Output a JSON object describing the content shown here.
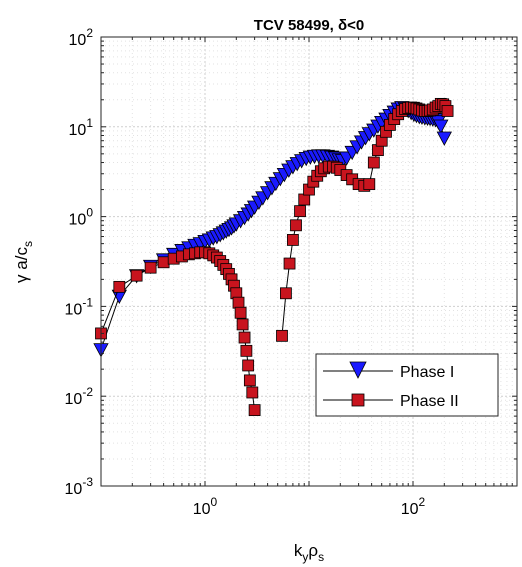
{
  "chart_data": {
    "type": "scatter",
    "title": "TCV 58499, δ<0",
    "xlabel": "k_y ρ_s",
    "ylabel": "γ a/c_s",
    "x_scale": "log",
    "y_scale": "log",
    "xlim": [
      0.1,
      1000
    ],
    "ylim": [
      0.001,
      100
    ],
    "x_ticks": [
      {
        "value": 1,
        "base": "10",
        "exp": "0"
      },
      {
        "value": 100,
        "base": "10",
        "exp": "2"
      }
    ],
    "y_ticks": [
      {
        "value": 0.001,
        "base": "10",
        "exp": "-3"
      },
      {
        "value": 0.01,
        "base": "10",
        "exp": "-2"
      },
      {
        "value": 0.1,
        "base": "10",
        "exp": "-1"
      },
      {
        "value": 1,
        "base": "10",
        "exp": "0"
      },
      {
        "value": 10,
        "base": "10",
        "exp": "1"
      },
      {
        "value": 100,
        "base": "10",
        "exp": "2"
      }
    ],
    "grid": true,
    "legend_position": "lower-right",
    "series": [
      {
        "name": "Phase I",
        "marker": "triangle-down",
        "color": "#1a1aff",
        "points": [
          [
            0.1,
            0.033
          ],
          [
            0.15,
            0.13
          ],
          [
            0.22,
            0.22
          ],
          [
            0.3,
            0.28
          ],
          [
            0.4,
            0.33
          ],
          [
            0.5,
            0.38
          ],
          [
            0.6,
            0.42
          ],
          [
            0.7,
            0.45
          ],
          [
            0.8,
            0.48
          ],
          [
            0.9,
            0.5
          ],
          [
            1.0,
            0.53
          ],
          [
            1.1,
            0.55
          ],
          [
            1.2,
            0.58
          ],
          [
            1.3,
            0.6
          ],
          [
            1.4,
            0.63
          ],
          [
            1.5,
            0.66
          ],
          [
            1.6,
            0.69
          ],
          [
            1.7,
            0.72
          ],
          [
            1.8,
            0.75
          ],
          [
            1.9,
            0.79
          ],
          [
            2.0,
            0.83
          ],
          [
            2.2,
            0.9
          ],
          [
            2.4,
            0.98
          ],
          [
            2.6,
            1.07
          ],
          [
            2.8,
            1.17
          ],
          [
            3.0,
            1.28
          ],
          [
            3.3,
            1.45
          ],
          [
            3.6,
            1.62
          ],
          [
            4.0,
            1.85
          ],
          [
            4.4,
            2.1
          ],
          [
            4.8,
            2.35
          ],
          [
            5.3,
            2.65
          ],
          [
            5.8,
            2.95
          ],
          [
            6.4,
            3.3
          ],
          [
            7.0,
            3.6
          ],
          [
            7.7,
            3.9
          ],
          [
            8.5,
            4.2
          ],
          [
            9.4,
            4.45
          ],
          [
            10.3,
            4.6
          ],
          [
            11.3,
            4.7
          ],
          [
            12.4,
            4.75
          ],
          [
            13.6,
            4.75
          ],
          [
            15.0,
            4.7
          ],
          [
            16.5,
            4.6
          ],
          [
            18.0,
            4.5
          ],
          [
            19.5,
            4.3
          ],
          [
            21.0,
            4.2
          ],
          [
            23.0,
            4.5
          ],
          [
            26.0,
            5.2
          ],
          [
            29.0,
            6.0
          ],
          [
            32.0,
            6.8
          ],
          [
            35.0,
            7.6
          ],
          [
            38.0,
            8.4
          ],
          [
            42.0,
            9.2
          ],
          [
            46.0,
            10.2
          ],
          [
            50.0,
            11.2
          ],
          [
            55.0,
            12.2
          ],
          [
            60.0,
            13.4
          ],
          [
            66.0,
            14.6
          ],
          [
            72.0,
            15.8
          ],
          [
            78.0,
            16.4
          ],
          [
            84.0,
            16.0
          ],
          [
            90.0,
            15.2
          ],
          [
            96.0,
            14.4
          ],
          [
            102.0,
            13.8
          ],
          [
            108.0,
            13.4
          ],
          [
            115.0,
            13.0
          ],
          [
            122.0,
            12.8
          ],
          [
            130.0,
            12.6
          ],
          [
            138.0,
            12.5
          ],
          [
            146.0,
            12.4
          ],
          [
            155.0,
            12.2
          ],
          [
            165.0,
            12.0
          ],
          [
            175.0,
            11.4
          ],
          [
            185.0,
            10.2
          ],
          [
            200.0,
            7.5
          ]
        ]
      },
      {
        "name": "Phase II",
        "marker": "square",
        "color": "#c8141e",
        "points": [
          [
            0.1,
            0.05
          ],
          [
            0.15,
            0.165
          ],
          [
            0.22,
            0.22
          ],
          [
            0.3,
            0.27
          ],
          [
            0.4,
            0.31
          ],
          [
            0.5,
            0.34
          ],
          [
            0.6,
            0.36
          ],
          [
            0.7,
            0.38
          ],
          [
            0.8,
            0.39
          ],
          [
            0.9,
            0.4
          ],
          [
            1.0,
            0.4
          ],
          [
            1.1,
            0.39
          ],
          [
            1.2,
            0.37
          ],
          [
            1.3,
            0.35
          ],
          [
            1.4,
            0.32
          ],
          [
            1.5,
            0.29
          ],
          [
            1.6,
            0.26
          ],
          [
            1.7,
            0.23
          ],
          [
            1.8,
            0.2
          ],
          [
            1.9,
            0.17
          ],
          [
            2.0,
            0.14
          ],
          [
            2.1,
            0.11
          ],
          [
            2.2,
            0.085
          ],
          [
            2.3,
            0.063
          ],
          [
            2.4,
            0.045
          ],
          [
            2.5,
            0.032
          ],
          [
            2.6,
            0.022
          ],
          [
            2.7,
            0.015
          ],
          [
            2.85,
            0.011
          ],
          [
            3.0,
            0.007
          ],
          [
            5.5,
            0.047
          ],
          [
            6.0,
            0.14
          ],
          [
            6.5,
            0.3
          ],
          [
            7.0,
            0.55
          ],
          [
            7.5,
            0.8
          ],
          [
            8.2,
            1.15
          ],
          [
            9.0,
            1.55
          ],
          [
            10.0,
            2.0
          ],
          [
            11.0,
            2.45
          ],
          [
            12.0,
            2.85
          ],
          [
            13.0,
            3.2
          ],
          [
            14.0,
            3.45
          ],
          [
            15.5,
            3.6
          ],
          [
            17.0,
            3.6
          ],
          [
            18.5,
            3.5
          ],
          [
            20.0,
            3.3
          ],
          [
            23.0,
            2.9
          ],
          [
            26.0,
            2.6
          ],
          [
            30.0,
            2.3
          ],
          [
            34.0,
            2.2
          ],
          [
            38.0,
            2.3
          ],
          [
            42.0,
            4.0
          ],
          [
            46.0,
            5.5
          ],
          [
            50.0,
            7.0
          ],
          [
            55.0,
            8.8
          ],
          [
            60.0,
            10.5
          ],
          [
            66.0,
            12.2
          ],
          [
            72.0,
            13.8
          ],
          [
            78.0,
            15.0
          ],
          [
            84.0,
            15.8
          ],
          [
            90.0,
            16.2
          ],
          [
            96.0,
            16.4
          ],
          [
            102.0,
            16.3
          ],
          [
            108.0,
            16.0
          ],
          [
            115.0,
            15.6
          ],
          [
            122.0,
            15.2
          ],
          [
            130.0,
            15.0
          ],
          [
            138.0,
            15.0
          ],
          [
            146.0,
            15.2
          ],
          [
            155.0,
            15.6
          ],
          [
            165.0,
            16.4
          ],
          [
            175.0,
            17.0
          ],
          [
            185.0,
            18.0
          ],
          [
            195.0,
            17.8
          ],
          [
            205.0,
            17.0
          ],
          [
            215.0,
            15.0
          ]
        ]
      }
    ]
  }
}
